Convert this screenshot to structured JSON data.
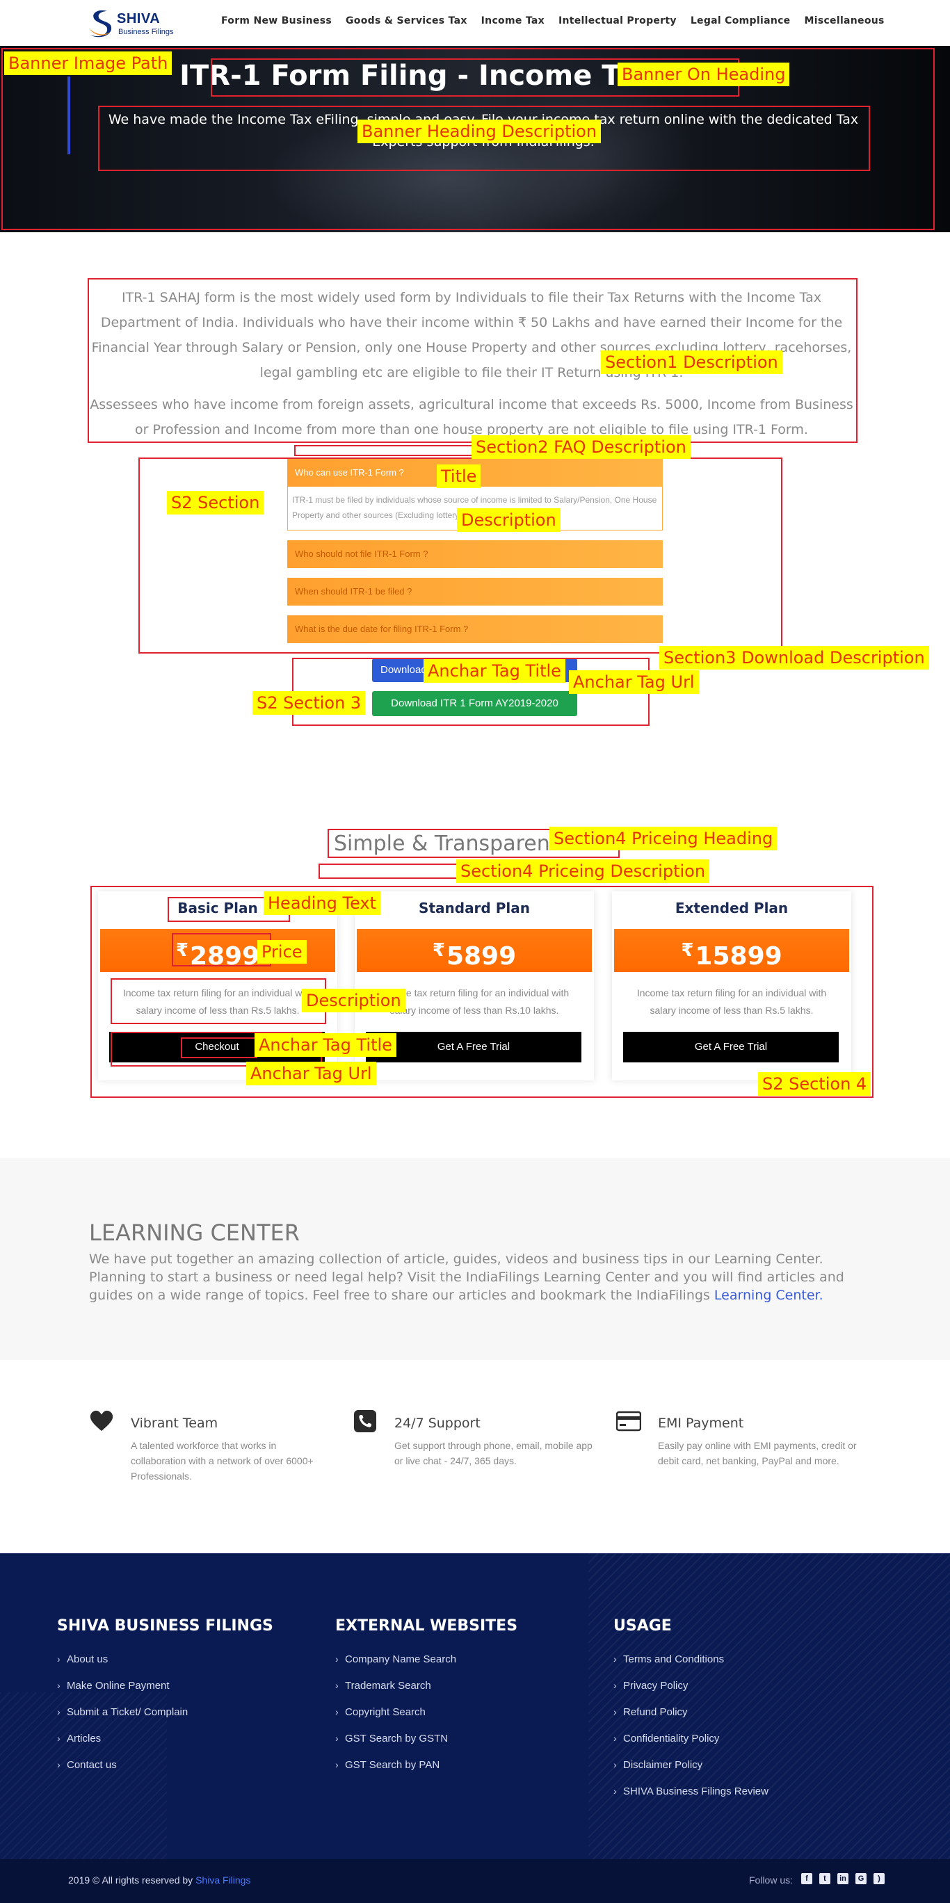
{
  "logo": {
    "name": "SHIVA",
    "subtitle": "Business Filings"
  },
  "nav": [
    "Form New Business",
    "Goods & Services Tax",
    "Income Tax",
    "Intellectual Property",
    "Legal Compliance",
    "Miscellaneous"
  ],
  "banner": {
    "title": "ITR-1 Form Filing - Income Tax Return",
    "description": "We have made the Income Tax eFiling, simple and easy. File your income tax return online with the dedicated Tax Experts support from IndiaFilings."
  },
  "section1": {
    "paragraphs": [
      "ITR-1 SAHAJ form is the most widely used form by Individuals to file their Tax Returns with the Income Tax Department of India. Individuals who have their income within ₹ 50 Lakhs and have earned their Income for the Financial Year through Salary or Pension, only one House Property and other sources excluding lottery, racehorses, legal gambling etc are eligible to file their IT Return using ITR-1.",
      "Assessees who have income from foreign assets, agricultural income that exceeds Rs. 5000, Income from Business or Profession and Income from more than one house property are not eligible to file using ITR-1 Form."
    ]
  },
  "faq": [
    {
      "question": "Who can use ITR-1 Form ?",
      "answer": "ITR-1 must be filed by individuals whose source of income is limited to Salary/Pension, One House Property and other sources (Excluding lottery and race horses)."
    },
    {
      "question": "Who should not file ITR-1 Form ?"
    },
    {
      "question": "When should ITR-1 be filed ?"
    },
    {
      "question": "What is the due date for filing ITR-1 Form ?"
    }
  ],
  "downloads": {
    "primary": "Download",
    "secondary": "Download ITR 1 Form AY2019-2020"
  },
  "pricing": {
    "heading": "Simple & Transparent",
    "currency": "₹",
    "plans": [
      {
        "title": "Basic Plan",
        "price": "2899",
        "description": "Income tax return filing for an individual with salary income of less than Rs.5 lakhs.",
        "button": "Checkout"
      },
      {
        "title": "Standard Plan",
        "price": "5899",
        "description": "Income tax return filing for an individual with salary income of less than Rs.10 lakhs.",
        "button": "Get A Free Trial"
      },
      {
        "title": "Extended Plan",
        "price": "15899",
        "description": "Income tax return filing for an individual with salary income of less than Rs.5 lakhs.",
        "button": "Get A Free Trial"
      }
    ]
  },
  "learning": {
    "title": "LEARNING CENTER",
    "text": "We have put together an amazing collection of article, guides, videos and business tips in our Learning Center. Planning to start a business or need legal help? Visit the IndiaFilings Learning Center and you will find articles and guides on a wide range of topics. Feel free to share our articles and bookmark the IndiaFilings",
    "link": "Learning Center."
  },
  "features": [
    {
      "icon": "heart-icon",
      "title": "Vibrant Team",
      "text": "A talented workforce that works in collaboration with a network of over 6000+ Professionals."
    },
    {
      "icon": "chat-support-icon",
      "title": "24/7 Support",
      "text": "Get support through phone, email, mobile app or live chat - 24/7, 365 days."
    },
    {
      "icon": "credit-card-icon",
      "title": "EMI Payment",
      "text": "Easily pay online with EMI payments, credit or debit card, net banking, PayPal and more."
    }
  ],
  "footer": {
    "columns": [
      {
        "title": "SHIVA BUSINESS FILINGS",
        "links": [
          "About us",
          "Make Online Payment",
          "Submit a Ticket/ Complain",
          "Articles",
          "Contact us"
        ]
      },
      {
        "title": "EXTERNAL WEBSITES",
        "links": [
          "Company Name Search",
          "Trademark Search",
          "Copyright Search",
          "GST Search by GSTN",
          "GST Search by PAN"
        ]
      },
      {
        "title": "USAGE",
        "links": [
          "Terms and Conditions",
          "Privacy Policy",
          "Refund Policy",
          "Confidentiality Policy",
          "Disclaimer Policy",
          "SHIVA Business Filings Review"
        ]
      }
    ],
    "copyright_prefix": "2019 © All rights reserved by",
    "copyright_link": "Shiva Filings",
    "follow": "Follow us:",
    "social": [
      "facebook-icon",
      "twitter-icon",
      "linkedin-icon",
      "google-plus-icon",
      "rss-icon"
    ]
  },
  "annotations": {
    "banner_image_path": "Banner Image Path",
    "banner_on_heading": "Banner On Heading",
    "banner_heading_description": "Banner Heading Description",
    "section1_description": "Section1 Description",
    "section2_faq_description": "Section2 FAQ Description",
    "title": "Title",
    "description": "Description",
    "s2_section": "S2 Section",
    "section3_download_description": "Section3 Download Description",
    "anchar_tag_title": "Anchar Tag Title",
    "anchar_tag_url": "Anchar Tag Url",
    "s2_section_3": "S2 Section 3",
    "section4_priceing_heading": "Section4 Priceing Heading",
    "section4_priceing_description": "Section4 Priceing Description",
    "heading_text": "Heading Text",
    "price": "Price",
    "plan_description": "Description",
    "plan_anchar_tag_title": "Anchar Tag Title",
    "plan_anchar_tag_url": "Anchar Tag Url",
    "s2_section_4": "S2 Section 4"
  },
  "colors": {
    "accent_orange": "#ff7a10",
    "footer_navy": "#0a1a52",
    "download_blue": "#2e5bd6",
    "download_green": "#1fa24f",
    "annotation_red": "#e0212f",
    "annotation_yellow": "#ffff00"
  }
}
